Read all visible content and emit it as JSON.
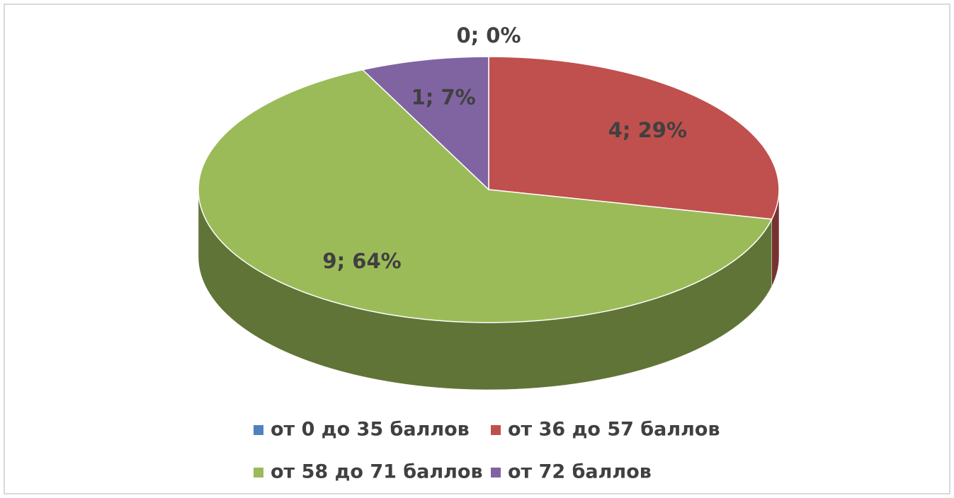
{
  "chart_data": {
    "type": "pie",
    "categories": [
      "от 0 до 35 баллов",
      "от 36 до 57 баллов",
      "от 58 до 71 баллов",
      "от 72 баллов"
    ],
    "values": [
      0,
      4,
      9,
      1
    ],
    "value_labels": [
      "0; 0%",
      "4; 29%",
      "9; 64%",
      "1; 7%"
    ],
    "colors": [
      "#4f81bd",
      "#c0504d",
      "#9bbb59",
      "#8064a2"
    ],
    "legend": "bottom"
  }
}
